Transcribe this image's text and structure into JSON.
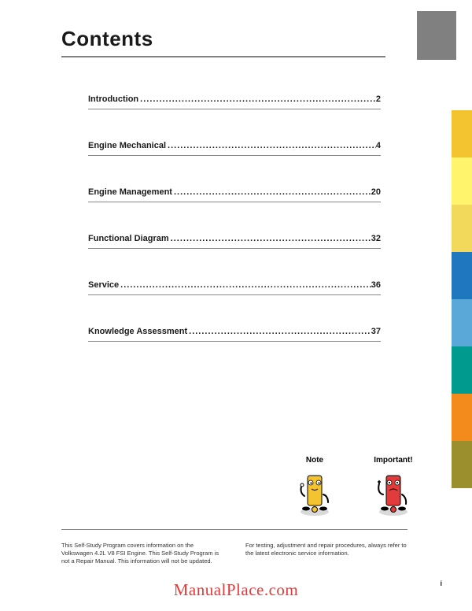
{
  "title": "Contents",
  "colorTabs": [
    "#f4c430",
    "#fff46b",
    "#f2d95c",
    "#1f77c0",
    "#5aa8d8",
    "#009a8e",
    "#f28a1c",
    "#9b8f2d"
  ],
  "toc": [
    {
      "label": "Introduction",
      "page": "2"
    },
    {
      "label": "Engine Mechanical",
      "page": "4"
    },
    {
      "label": "Engine Management",
      "page": "20"
    },
    {
      "label": "Functional Diagram",
      "page": "32"
    },
    {
      "label": "Service",
      "page": "36"
    },
    {
      "label": "Knowledge Assessment",
      "page": "37"
    }
  ],
  "legend": {
    "note": "Note",
    "important": "Important!",
    "noteColor": "#f4c430",
    "importantColor": "#e23b3b"
  },
  "footer": {
    "left": "This Self-Study Program covers information on the Volkswagen 4.2L V8 FSI Engine.\nThis Self-Study Program is not a Repair Manual.\nThis information will not be updated.",
    "right": "For testing, adjustment and repair procedures, always refer to the latest electronic service information."
  },
  "watermark": "ManualPlace.com",
  "pageNumber": "i"
}
